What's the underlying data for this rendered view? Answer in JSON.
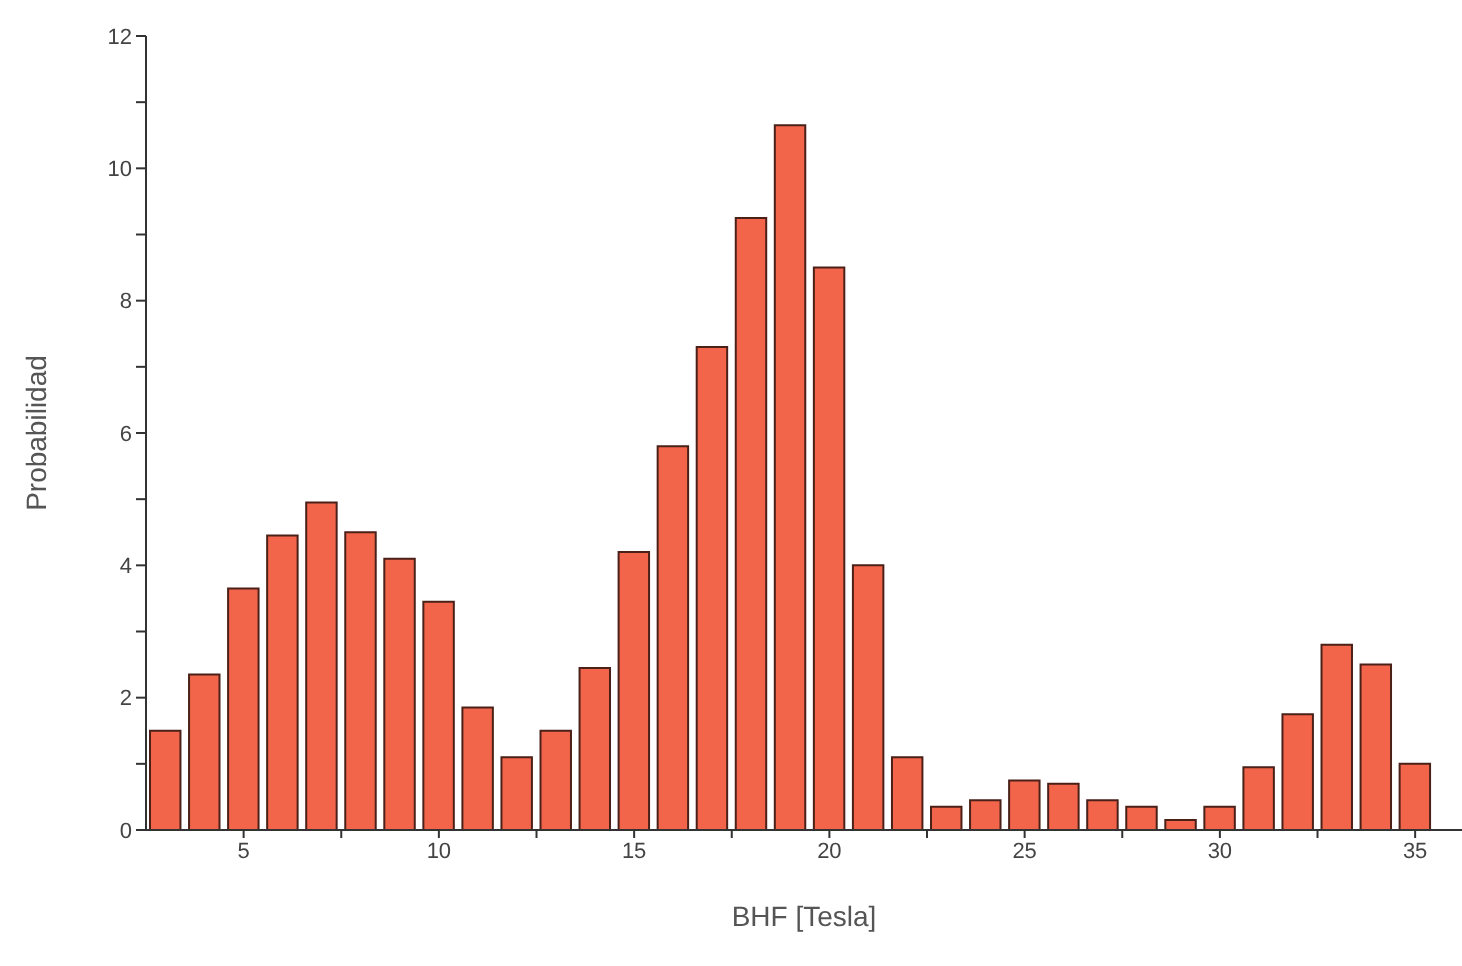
{
  "chart_data": {
    "type": "bar",
    "xlabel": "BHF [Tesla]",
    "ylabel": "Probabilidad",
    "x": [
      3,
      4,
      5,
      6,
      7,
      8,
      9,
      10,
      11,
      12,
      13,
      14,
      15,
      16,
      17,
      18,
      19,
      20,
      21,
      22,
      23,
      24,
      25,
      26,
      27,
      28,
      29,
      30,
      31,
      32,
      33,
      34,
      35
    ],
    "values": [
      1.5,
      2.35,
      3.65,
      4.45,
      4.95,
      4.5,
      4.1,
      3.45,
      1.85,
      1.1,
      1.5,
      2.45,
      4.2,
      5.8,
      7.3,
      9.25,
      10.65,
      8.5,
      4.0,
      1.1,
      0.35,
      0.45,
      0.75,
      0.7,
      0.45,
      0.35,
      0.15,
      0.35,
      0.95,
      1.75,
      2.8,
      2.5,
      1.0
    ],
    "color": "#f2654a",
    "xlim": [
      2.5,
      36.2
    ],
    "xticks": [
      5,
      {
        "value": 7.5,
        "label": null
      },
      10,
      {
        "value": 12.5,
        "label": null
      },
      15,
      {
        "value": 17.5,
        "label": null
      },
      20,
      {
        "value": 22.5,
        "label": null
      },
      25,
      {
        "value": 27.5,
        "label": null
      },
      30,
      {
        "value": 32.5,
        "label": null
      },
      35
    ],
    "ylim": [
      0,
      12
    ],
    "yticks": [
      0,
      {
        "value": 1,
        "label": null
      },
      2,
      {
        "value": 3,
        "label": null
      },
      4,
      {
        "value": 5,
        "label": null
      },
      6,
      {
        "value": 7,
        "label": null
      },
      8,
      {
        "value": 9,
        "label": null
      },
      10,
      {
        "value": 11,
        "label": null
      },
      12
    ],
    "grid": false
  }
}
